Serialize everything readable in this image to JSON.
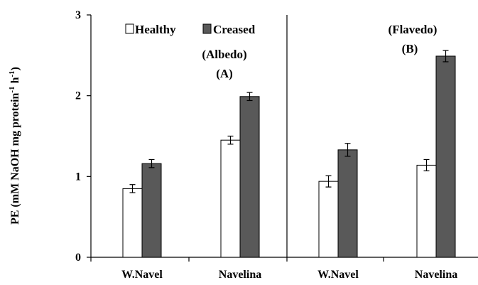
{
  "chart_data": {
    "type": "bar",
    "ylabel": "PE (mM NaOH mg protein",
    "ylabel_sup1": "-1",
    "ylabel_mid": " h",
    "ylabel_sup2": "-1",
    "ylabel_end": ")",
    "ylim": [
      0,
      3
    ],
    "yticks": [
      "0",
      "1",
      "2",
      "3"
    ],
    "grid": false,
    "legend_position": "top-left",
    "series": [
      {
        "name": "Healthy",
        "color": "#ffffff"
      },
      {
        "name": "Creased",
        "color": "#595959"
      }
    ],
    "panels": [
      {
        "label_line1": "(Albedo)",
        "label_line2": "(A)",
        "categories": [
          "W.Navel",
          "Navelina"
        ],
        "values": {
          "Healthy": [
            0.85,
            1.45
          ],
          "Creased": [
            1.16,
            1.99
          ]
        },
        "errors": {
          "Healthy": [
            0.05,
            0.05
          ],
          "Creased": [
            0.05,
            0.05
          ]
        }
      },
      {
        "label_line1": "(Flavedo)",
        "label_line2": "(B)",
        "categories": [
          "W.Navel",
          "Navelina"
        ],
        "values": {
          "Healthy": [
            0.94,
            1.14
          ],
          "Creased": [
            1.33,
            2.49
          ]
        },
        "errors": {
          "Healthy": [
            0.07,
            0.07
          ],
          "Creased": [
            0.08,
            0.07
          ]
        }
      }
    ]
  }
}
